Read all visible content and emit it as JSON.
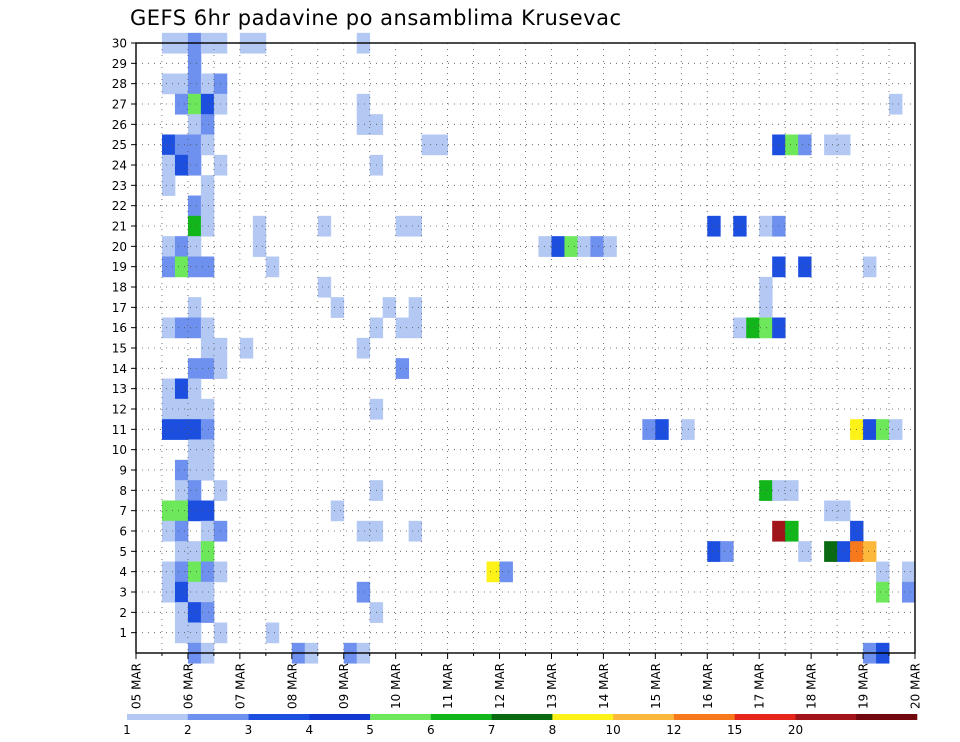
{
  "chart_data": {
    "type": "heatmap",
    "title": "GEFS 6hr padavine po ansamblima Krusevac",
    "x_tick_labels": [
      "05 MAR",
      "06 MAR",
      "07 MAR",
      "08 MAR",
      "09 MAR",
      "10 MAR",
      "11 MAR",
      "12 MAR",
      "13 MAR",
      "14 MAR",
      "15 MAR",
      "16 MAR",
      "17 MAR",
      "18 MAR",
      "19 MAR",
      "20 MAR"
    ],
    "y_tick_labels": [
      "1",
      "2",
      "3",
      "4",
      "5",
      "6",
      "7",
      "8",
      "9",
      "10",
      "11",
      "12",
      "13",
      "14",
      "15",
      "16",
      "17",
      "18",
      "19",
      "20",
      "21",
      "22",
      "23",
      "24",
      "25",
      "26",
      "27",
      "28",
      "29",
      "30"
    ],
    "y_range": [
      0,
      30
    ],
    "steps_per_day": 4,
    "grid": true,
    "colorbar": {
      "labels": [
        "1",
        "2",
        "3",
        "4",
        "5",
        "6",
        "7",
        "8",
        "10",
        "12",
        "15",
        "20"
      ],
      "colors": [
        "#b4c8f4",
        "#6e90ee",
        "#1c4fe0",
        "#1238d2",
        "#6ce85a",
        "#12b61a",
        "#0a6a12",
        "#fcf218",
        "#fcb83a",
        "#f8781c",
        "#e6261a",
        "#a0141a",
        "#70080e"
      ]
    },
    "cells": [
      {
        "member": 30,
        "step": 2,
        "level": 1
      },
      {
        "member": 30,
        "step": 3,
        "level": 1
      },
      {
        "member": 30,
        "step": 4,
        "level": 2
      },
      {
        "member": 30,
        "step": 5,
        "level": 1
      },
      {
        "member": 30,
        "step": 6,
        "level": 1
      },
      {
        "member": 30,
        "step": 8,
        "level": 1
      },
      {
        "member": 30,
        "step": 9,
        "level": 1
      },
      {
        "member": 30,
        "step": 17,
        "level": 1
      },
      {
        "member": 29,
        "step": 4,
        "level": 2
      },
      {
        "member": 28,
        "step": 2,
        "level": 1
      },
      {
        "member": 28,
        "step": 3,
        "level": 1
      },
      {
        "member": 28,
        "step": 4,
        "level": 2
      },
      {
        "member": 28,
        "step": 5,
        "level": 1
      },
      {
        "member": 28,
        "step": 6,
        "level": 2
      },
      {
        "member": 27,
        "step": 3,
        "level": 2
      },
      {
        "member": 27,
        "step": 4,
        "level": 5
      },
      {
        "member": 27,
        "step": 5,
        "level": 3
      },
      {
        "member": 27,
        "step": 6,
        "level": 1
      },
      {
        "member": 27,
        "step": 17,
        "level": 1
      },
      {
        "member": 27,
        "step": 58,
        "level": 1
      },
      {
        "member": 26,
        "step": 4,
        "level": 1
      },
      {
        "member": 26,
        "step": 5,
        "level": 2
      },
      {
        "member": 26,
        "step": 17,
        "level": 1
      },
      {
        "member": 26,
        "step": 18,
        "level": 1
      },
      {
        "member": 25,
        "step": 2,
        "level": 3
      },
      {
        "member": 25,
        "step": 3,
        "level": 2
      },
      {
        "member": 25,
        "step": 4,
        "level": 2
      },
      {
        "member": 25,
        "step": 5,
        "level": 1
      },
      {
        "member": 25,
        "step": 22,
        "level": 1
      },
      {
        "member": 25,
        "step": 23,
        "level": 1
      },
      {
        "member": 25,
        "step": 49,
        "level": 3
      },
      {
        "member": 25,
        "step": 50,
        "level": 5
      },
      {
        "member": 25,
        "step": 51,
        "level": 2
      },
      {
        "member": 25,
        "step": 53,
        "level": 1
      },
      {
        "member": 25,
        "step": 54,
        "level": 1
      },
      {
        "member": 24,
        "step": 2,
        "level": 1
      },
      {
        "member": 24,
        "step": 3,
        "level": 3
      },
      {
        "member": 24,
        "step": 4,
        "level": 2
      },
      {
        "member": 24,
        "step": 6,
        "level": 1
      },
      {
        "member": 24,
        "step": 18,
        "level": 1
      },
      {
        "member": 23,
        "step": 2,
        "level": 1
      },
      {
        "member": 23,
        "step": 5,
        "level": 1
      },
      {
        "member": 22,
        "step": 4,
        "level": 2
      },
      {
        "member": 22,
        "step": 5,
        "level": 1
      },
      {
        "member": 21,
        "step": 4,
        "level": 6
      },
      {
        "member": 21,
        "step": 5,
        "level": 1
      },
      {
        "member": 21,
        "step": 9,
        "level": 1
      },
      {
        "member": 21,
        "step": 14,
        "level": 1
      },
      {
        "member": 21,
        "step": 20,
        "level": 1
      },
      {
        "member": 21,
        "step": 21,
        "level": 1
      },
      {
        "member": 21,
        "step": 44,
        "level": 3
      },
      {
        "member": 21,
        "step": 46,
        "level": 3
      },
      {
        "member": 21,
        "step": 48,
        "level": 1
      },
      {
        "member": 21,
        "step": 49,
        "level": 2
      },
      {
        "member": 20,
        "step": 2,
        "level": 1
      },
      {
        "member": 20,
        "step": 3,
        "level": 2
      },
      {
        "member": 20,
        "step": 4,
        "level": 1
      },
      {
        "member": 20,
        "step": 9,
        "level": 1
      },
      {
        "member": 20,
        "step": 31,
        "level": 1
      },
      {
        "member": 20,
        "step": 32,
        "level": 3
      },
      {
        "member": 20,
        "step": 33,
        "level": 5
      },
      {
        "member": 20,
        "step": 34,
        "level": 1
      },
      {
        "member": 20,
        "step": 35,
        "level": 2
      },
      {
        "member": 20,
        "step": 36,
        "level": 1
      },
      {
        "member": 19,
        "step": 2,
        "level": 2
      },
      {
        "member": 19,
        "step": 3,
        "level": 5
      },
      {
        "member": 19,
        "step": 4,
        "level": 2
      },
      {
        "member": 19,
        "step": 5,
        "level": 2
      },
      {
        "member": 19,
        "step": 10,
        "level": 1
      },
      {
        "member": 19,
        "step": 49,
        "level": 3
      },
      {
        "member": 19,
        "step": 51,
        "level": 3
      },
      {
        "member": 19,
        "step": 56,
        "level": 1
      },
      {
        "member": 18,
        "step": 14,
        "level": 1
      },
      {
        "member": 18,
        "step": 48,
        "level": 1
      },
      {
        "member": 17,
        "step": 4,
        "level": 1
      },
      {
        "member": 17,
        "step": 15,
        "level": 1
      },
      {
        "member": 17,
        "step": 19,
        "level": 1
      },
      {
        "member": 17,
        "step": 21,
        "level": 1
      },
      {
        "member": 17,
        "step": 48,
        "level": 1
      },
      {
        "member": 16,
        "step": 2,
        "level": 1
      },
      {
        "member": 16,
        "step": 3,
        "level": 2
      },
      {
        "member": 16,
        "step": 4,
        "level": 2
      },
      {
        "member": 16,
        "step": 5,
        "level": 1
      },
      {
        "member": 16,
        "step": 18,
        "level": 1
      },
      {
        "member": 16,
        "step": 20,
        "level": 1
      },
      {
        "member": 16,
        "step": 21,
        "level": 1
      },
      {
        "member": 16,
        "step": 46,
        "level": 1
      },
      {
        "member": 16,
        "step": 47,
        "level": 6
      },
      {
        "member": 16,
        "step": 48,
        "level": 5
      },
      {
        "member": 16,
        "step": 49,
        "level": 3
      },
      {
        "member": 15,
        "step": 5,
        "level": 1
      },
      {
        "member": 15,
        "step": 6,
        "level": 1
      },
      {
        "member": 15,
        "step": 8,
        "level": 1
      },
      {
        "member": 15,
        "step": 17,
        "level": 1
      },
      {
        "member": 14,
        "step": 4,
        "level": 2
      },
      {
        "member": 14,
        "step": 5,
        "level": 2
      },
      {
        "member": 14,
        "step": 6,
        "level": 1
      },
      {
        "member": 14,
        "step": 20,
        "level": 2
      },
      {
        "member": 13,
        "step": 2,
        "level": 1
      },
      {
        "member": 13,
        "step": 3,
        "level": 3
      },
      {
        "member": 13,
        "step": 4,
        "level": 1
      },
      {
        "member": 12,
        "step": 2,
        "level": 1
      },
      {
        "member": 12,
        "step": 3,
        "level": 1
      },
      {
        "member": 12,
        "step": 4,
        "level": 1
      },
      {
        "member": 12,
        "step": 5,
        "level": 1
      },
      {
        "member": 12,
        "step": 18,
        "level": 1
      },
      {
        "member": 11,
        "step": 2,
        "level": 3
      },
      {
        "member": 11,
        "step": 3,
        "level": 3
      },
      {
        "member": 11,
        "step": 4,
        "level": 3
      },
      {
        "member": 11,
        "step": 5,
        "level": 2
      },
      {
        "member": 11,
        "step": 39,
        "level": 2
      },
      {
        "member": 11,
        "step": 40,
        "level": 3
      },
      {
        "member": 11,
        "step": 42,
        "level": 1
      },
      {
        "member": 11,
        "step": 55,
        "level": 8
      },
      {
        "member": 11,
        "step": 56,
        "level": 3
      },
      {
        "member": 11,
        "step": 57,
        "level": 5
      },
      {
        "member": 11,
        "step": 58,
        "level": 1
      },
      {
        "member": 10,
        "step": 4,
        "level": 1
      },
      {
        "member": 10,
        "step": 5,
        "level": 1
      },
      {
        "member": 9,
        "step": 3,
        "level": 2
      },
      {
        "member": 9,
        "step": 4,
        "level": 1
      },
      {
        "member": 9,
        "step": 5,
        "level": 1
      },
      {
        "member": 8,
        "step": 3,
        "level": 1
      },
      {
        "member": 8,
        "step": 4,
        "level": 2
      },
      {
        "member": 8,
        "step": 6,
        "level": 1
      },
      {
        "member": 8,
        "step": 18,
        "level": 1
      },
      {
        "member": 8,
        "step": 48,
        "level": 6
      },
      {
        "member": 8,
        "step": 49,
        "level": 1
      },
      {
        "member": 8,
        "step": 50,
        "level": 1
      },
      {
        "member": 7,
        "step": 2,
        "level": 5
      },
      {
        "member": 7,
        "step": 3,
        "level": 5
      },
      {
        "member": 7,
        "step": 4,
        "level": 3
      },
      {
        "member": 7,
        "step": 5,
        "level": 3
      },
      {
        "member": 7,
        "step": 15,
        "level": 1
      },
      {
        "member": 7,
        "step": 53,
        "level": 1
      },
      {
        "member": 7,
        "step": 54,
        "level": 1
      },
      {
        "member": 6,
        "step": 2,
        "level": 1
      },
      {
        "member": 6,
        "step": 3,
        "level": 2
      },
      {
        "member": 6,
        "step": 5,
        "level": 1
      },
      {
        "member": 6,
        "step": 6,
        "level": 2
      },
      {
        "member": 6,
        "step": 17,
        "level": 1
      },
      {
        "member": 6,
        "step": 18,
        "level": 1
      },
      {
        "member": 6,
        "step": 21,
        "level": 1
      },
      {
        "member": 6,
        "step": 49,
        "level": 12
      },
      {
        "member": 6,
        "step": 50,
        "level": 6
      },
      {
        "member": 6,
        "step": 55,
        "level": 3
      },
      {
        "member": 5,
        "step": 3,
        "level": 1
      },
      {
        "member": 5,
        "step": 4,
        "level": 1
      },
      {
        "member": 5,
        "step": 5,
        "level": 5
      },
      {
        "member": 5,
        "step": 44,
        "level": 3
      },
      {
        "member": 5,
        "step": 45,
        "level": 2
      },
      {
        "member": 5,
        "step": 51,
        "level": 1
      },
      {
        "member": 5,
        "step": 53,
        "level": 7
      },
      {
        "member": 5,
        "step": 54,
        "level": 3
      },
      {
        "member": 5,
        "step": 55,
        "level": 10
      },
      {
        "member": 5,
        "step": 56,
        "level": 9
      },
      {
        "member": 4,
        "step": 2,
        "level": 1
      },
      {
        "member": 4,
        "step": 3,
        "level": 2
      },
      {
        "member": 4,
        "step": 4,
        "level": 5
      },
      {
        "member": 4,
        "step": 5,
        "level": 2
      },
      {
        "member": 4,
        "step": 6,
        "level": 1
      },
      {
        "member": 4,
        "step": 27,
        "level": 8
      },
      {
        "member": 4,
        "step": 28,
        "level": 2
      },
      {
        "member": 4,
        "step": 57,
        "level": 1
      },
      {
        "member": 4,
        "step": 59,
        "level": 1
      },
      {
        "member": 3,
        "step": 2,
        "level": 1
      },
      {
        "member": 3,
        "step": 3,
        "level": 3
      },
      {
        "member": 3,
        "step": 4,
        "level": 1
      },
      {
        "member": 3,
        "step": 5,
        "level": 1
      },
      {
        "member": 3,
        "step": 17,
        "level": 2
      },
      {
        "member": 3,
        "step": 57,
        "level": 5
      },
      {
        "member": 3,
        "step": 59,
        "level": 2
      },
      {
        "member": 2,
        "step": 3,
        "level": 1
      },
      {
        "member": 2,
        "step": 4,
        "level": 3
      },
      {
        "member": 2,
        "step": 5,
        "level": 2
      },
      {
        "member": 2,
        "step": 18,
        "level": 1
      },
      {
        "member": 1,
        "step": 3,
        "level": 1
      },
      {
        "member": 1,
        "step": 4,
        "level": 1
      },
      {
        "member": 1,
        "step": 6,
        "level": 1
      },
      {
        "member": 1,
        "step": 10,
        "level": 1
      },
      {
        "member": 0,
        "step": 4,
        "level": 2
      },
      {
        "member": 0,
        "step": 5,
        "level": 1
      },
      {
        "member": 0,
        "step": 12,
        "level": 2
      },
      {
        "member": 0,
        "step": 13,
        "level": 1
      },
      {
        "member": 0,
        "step": 16,
        "level": 2
      },
      {
        "member": 0,
        "step": 17,
        "level": 1
      },
      {
        "member": 0,
        "step": 56,
        "level": 2
      },
      {
        "member": 0,
        "step": 57,
        "level": 3
      }
    ]
  }
}
